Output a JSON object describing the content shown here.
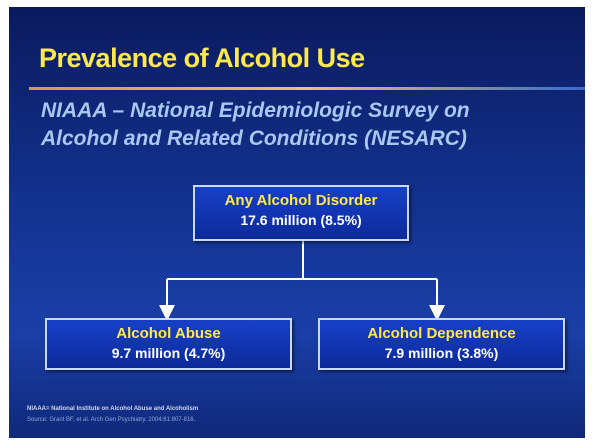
{
  "title": "Prevalence of Alcohol Use",
  "subtitle": [
    "NIAAA – National Epidemiologic Survey on",
    "Alcohol and Related Conditions (NESARC)"
  ],
  "nodes": [
    {
      "label": "Any Alcohol Disorder",
      "value": "17.6 million (8.5%)"
    },
    {
      "label": "Alcohol Abuse",
      "value": "9.7 million (4.7%)"
    },
    {
      "label": "Alcohol Dependence",
      "value": "7.9 million (3.8%)"
    }
  ],
  "footnotes": [
    "NIAAA= National Institute on Alcohol Abuse and Alcoholism",
    "Source: Grant BF, et al. Arch Gen Psychiatry. 2004;61:807-816."
  ]
}
